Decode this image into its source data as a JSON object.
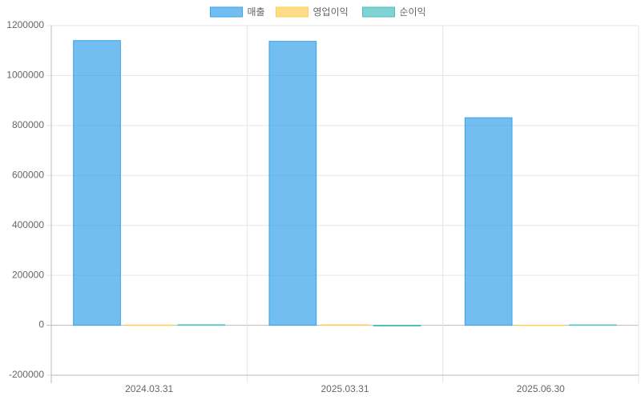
{
  "chart_data": {
    "type": "bar",
    "categories": [
      "2024.03.31",
      "2025.03.31",
      "2025.06.30"
    ],
    "series": [
      {
        "name": "매출",
        "color": "#36a2eb",
        "values": [
          1140000,
          1137000,
          831000
        ]
      },
      {
        "name": "영업이익",
        "color": "#ffce56",
        "values": [
          1000,
          2000,
          500
        ]
      },
      {
        "name": "순이익",
        "color": "#4bc0c0",
        "values": [
          2000,
          -3000,
          1500
        ]
      }
    ],
    "ylim": [
      -200000,
      1200000
    ],
    "yticks": [
      -200000,
      0,
      200000,
      400000,
      600000,
      800000,
      1000000,
      1200000
    ],
    "grid": true,
    "legend": "top"
  }
}
